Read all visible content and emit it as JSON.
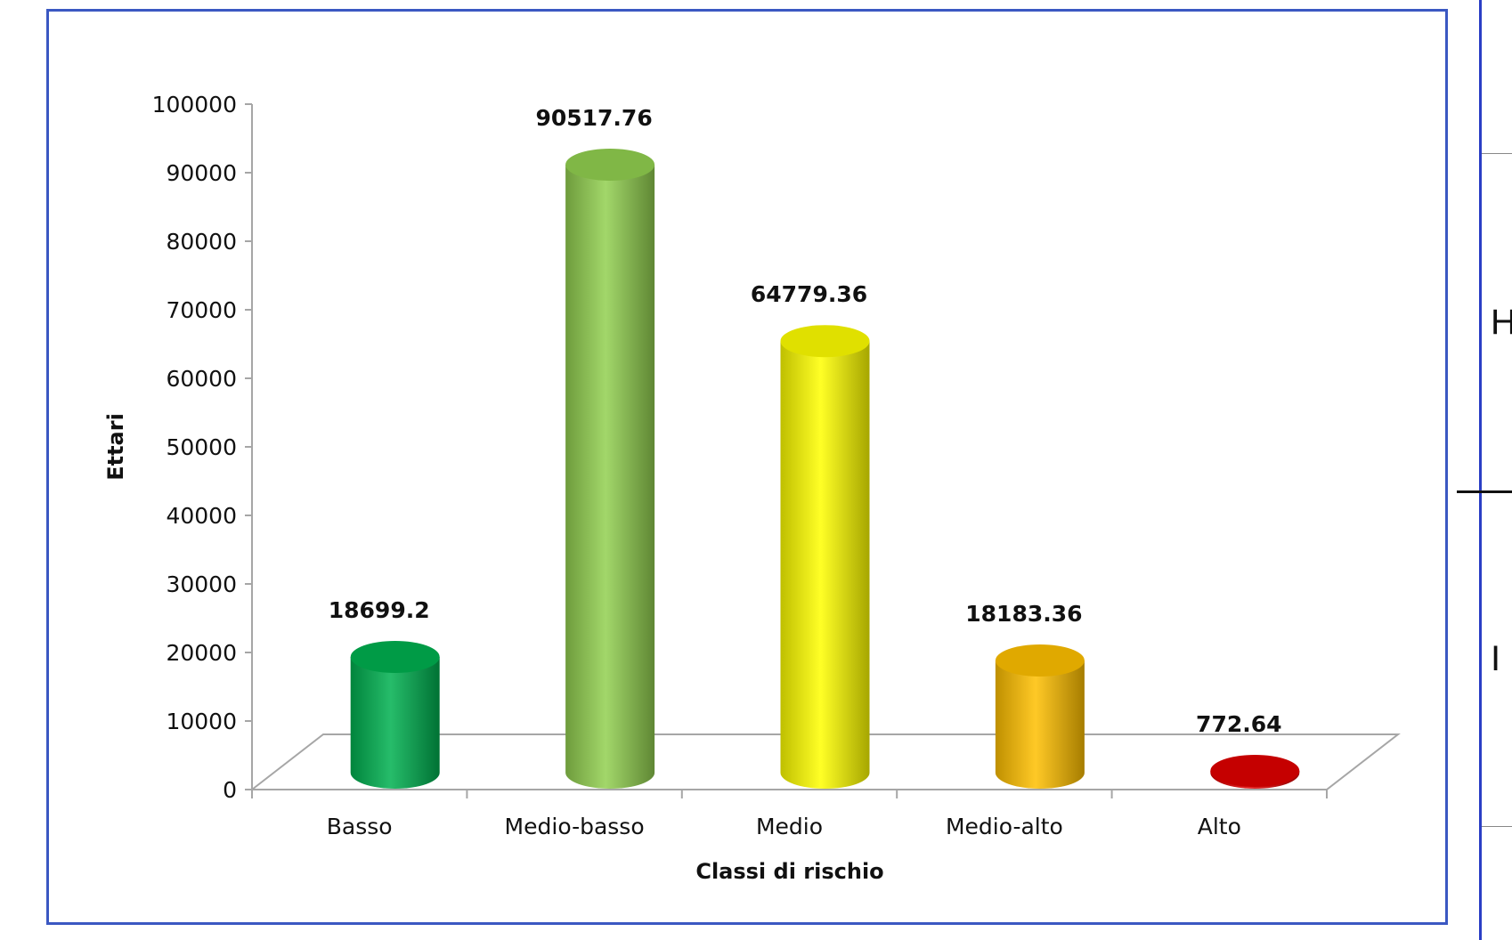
{
  "chart_data": {
    "type": "bar",
    "style": "3d-cylinder",
    "categories": [
      "Basso",
      "Medio-basso",
      "Medio",
      "Medio-alto",
      "Alto"
    ],
    "values": [
      18699.2,
      90517.76,
      64779.36,
      18183.36,
      772.64
    ],
    "value_labels": [
      "18699.2",
      "90517.76",
      "64779.36",
      "18183.36",
      "772.64"
    ],
    "colors": [
      "#00b050",
      "#92d050",
      "#ffff00",
      "#ffc000",
      "#e00000"
    ],
    "xlabel": "Classi di rischio",
    "ylabel": "Ettari",
    "ylim": [
      0,
      100000
    ],
    "yticks": [
      0,
      10000,
      20000,
      30000,
      40000,
      50000,
      60000,
      70000,
      80000,
      90000,
      100000
    ],
    "ytick_labels": [
      "0",
      "10000",
      "20000",
      "30000",
      "40000",
      "50000",
      "60000",
      "70000",
      "80000",
      "90000",
      "100000"
    ],
    "grid": false,
    "legend": "none"
  },
  "side_panel": {
    "letters": [
      "H",
      "I"
    ]
  }
}
